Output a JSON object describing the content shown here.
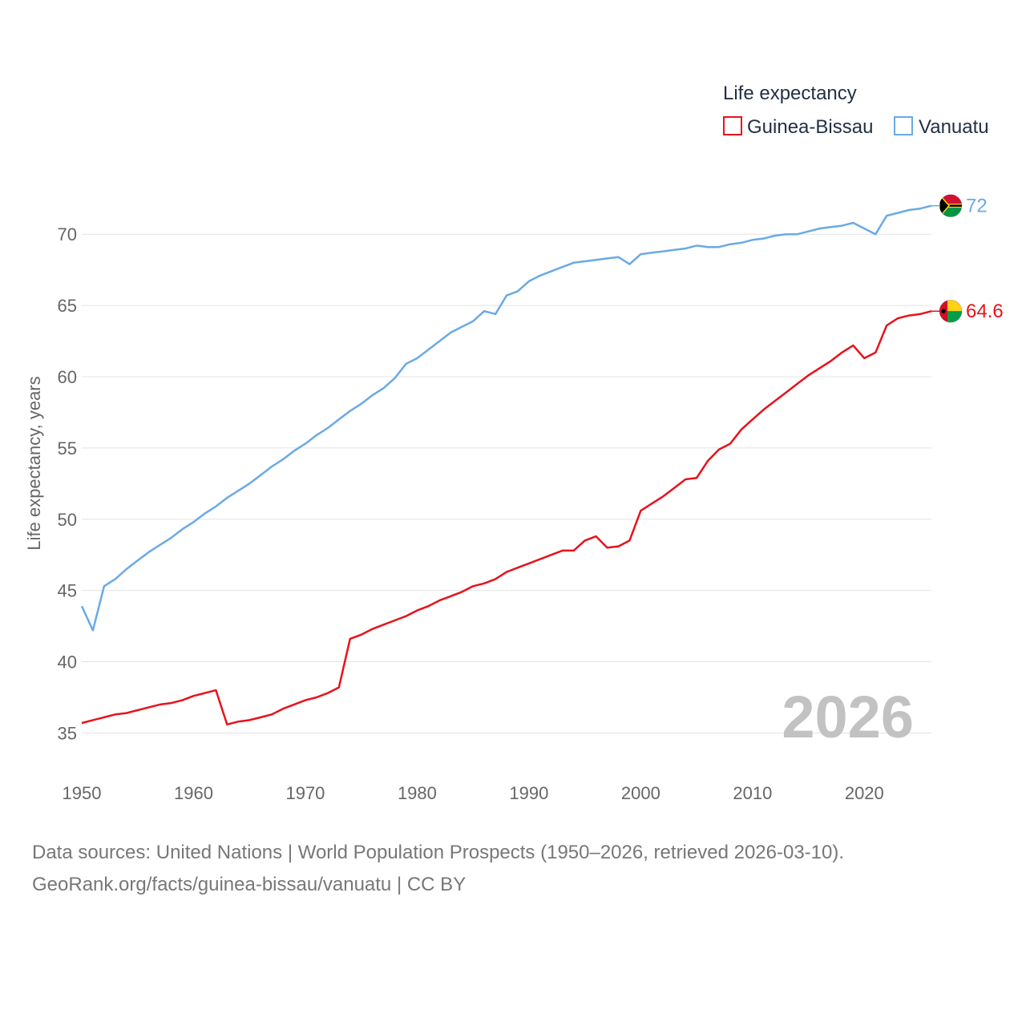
{
  "chart_data": {
    "type": "line",
    "title": "",
    "xlabel": "",
    "ylabel": "Life expectancy, years",
    "legend_title": "Life expectancy",
    "legend_position": "top-right",
    "year_watermark": "2026",
    "xlim": [
      1950,
      2026
    ],
    "ylim": [
      33,
      73.5
    ],
    "x_ticks": [
      1950,
      1960,
      1970,
      1980,
      1990,
      2000,
      2010,
      2020
    ],
    "y_ticks": [
      35,
      40,
      45,
      50,
      55,
      60,
      65,
      70
    ],
    "grid": true,
    "x": [
      1950,
      1951,
      1952,
      1953,
      1954,
      1955,
      1956,
      1957,
      1958,
      1959,
      1960,
      1961,
      1962,
      1963,
      1964,
      1965,
      1966,
      1967,
      1968,
      1969,
      1970,
      1971,
      1972,
      1973,
      1974,
      1975,
      1976,
      1977,
      1978,
      1979,
      1980,
      1981,
      1982,
      1983,
      1984,
      1985,
      1986,
      1987,
      1988,
      1989,
      1990,
      1991,
      1992,
      1993,
      1994,
      1995,
      1996,
      1997,
      1998,
      1999,
      2000,
      2001,
      2002,
      2003,
      2004,
      2005,
      2006,
      2007,
      2008,
      2009,
      2010,
      2011,
      2012,
      2013,
      2014,
      2015,
      2016,
      2017,
      2018,
      2019,
      2020,
      2021,
      2022,
      2023,
      2024,
      2025,
      2026
    ],
    "series": [
      {
        "name": "Guinea-Bissau",
        "color": "#e8121a",
        "end_label": "64.6",
        "flag": "guinea-bissau-flag",
        "values": [
          35.7,
          35.9,
          36.1,
          36.3,
          36.4,
          36.6,
          36.8,
          37.0,
          37.1,
          37.3,
          37.6,
          37.8,
          38.0,
          35.6,
          35.8,
          35.9,
          36.1,
          36.3,
          36.7,
          37.0,
          37.3,
          37.5,
          37.8,
          38.2,
          41.6,
          41.9,
          42.3,
          42.6,
          42.9,
          43.2,
          43.6,
          43.9,
          44.3,
          44.6,
          44.9,
          45.3,
          45.5,
          45.8,
          46.3,
          46.6,
          46.9,
          47.2,
          47.5,
          47.8,
          47.8,
          48.5,
          48.8,
          48.0,
          48.1,
          48.5,
          50.6,
          51.1,
          51.6,
          52.2,
          52.8,
          52.9,
          54.1,
          54.9,
          55.3,
          56.3,
          57.0,
          57.7,
          58.3,
          58.9,
          59.5,
          60.1,
          60.6,
          61.1,
          61.7,
          62.2,
          61.3,
          61.7,
          63.6,
          64.1,
          64.3,
          64.4,
          64.6
        ]
      },
      {
        "name": "Vanuatu",
        "color": "#6aaae5",
        "end_label": "72",
        "flag": "vanuatu-flag",
        "values": [
          43.9,
          42.2,
          45.3,
          45.8,
          46.5,
          47.1,
          47.7,
          48.2,
          48.7,
          49.3,
          49.8,
          50.4,
          50.9,
          51.5,
          52.0,
          52.5,
          53.1,
          53.7,
          54.2,
          54.8,
          55.3,
          55.9,
          56.4,
          57.0,
          57.6,
          58.1,
          58.7,
          59.2,
          59.9,
          60.9,
          61.3,
          61.9,
          62.5,
          63.1,
          63.5,
          63.9,
          64.6,
          64.4,
          65.7,
          66.0,
          66.7,
          67.1,
          67.4,
          67.7,
          68.0,
          68.1,
          68.2,
          68.3,
          68.4,
          67.9,
          68.6,
          68.7,
          68.8,
          68.9,
          69.0,
          69.2,
          69.1,
          69.1,
          69.3,
          69.4,
          69.6,
          69.7,
          69.9,
          70.0,
          70.0,
          70.2,
          70.4,
          70.5,
          70.6,
          70.8,
          70.4,
          70.0,
          71.3,
          71.5,
          71.7,
          71.8,
          72.0
        ]
      }
    ]
  },
  "footer": {
    "line1": "Data sources: United Nations | World Population Prospects (1950–2026, retrieved 2026-03-10).",
    "line2": "GeoRank.org/facts/guinea-bissau/vanuatu | CC BY"
  }
}
